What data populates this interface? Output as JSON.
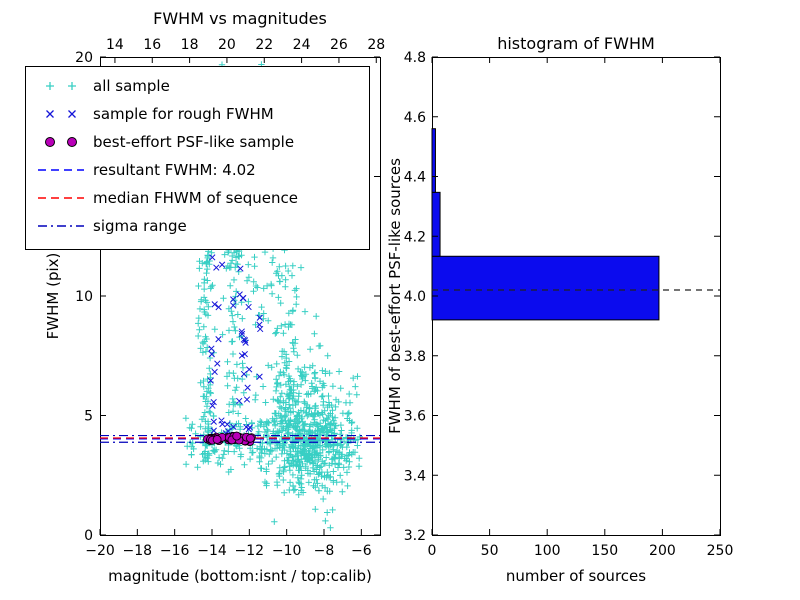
{
  "figure": {
    "background": "#ffffff"
  },
  "chart_data": [
    {
      "type": "scatter",
      "title": "FWHM vs magnitudes",
      "xlabel": "magnitude (bottom:isnt / top:calib)",
      "ylabel": "FWHM (pix)",
      "xlim": [
        -20,
        -5
      ],
      "ylim": [
        0,
        20
      ],
      "xticks": [
        -20,
        -18,
        -16,
        -14,
        -12,
        -10,
        -8,
        -6
      ],
      "yticks": [
        0,
        5,
        10,
        15,
        20
      ],
      "top_axis": {
        "lim": [
          13.2,
          28.2
        ],
        "ticks": [
          14,
          16,
          18,
          20,
          22,
          24,
          26,
          28
        ]
      },
      "grid": false,
      "series": [
        {
          "name": "all sample",
          "marker": "plus",
          "color": "#38cfc4",
          "clusters": [
            {
              "n": 230,
              "x": {
                "u": [
                  -15.4,
                  -6.1
                ]
              },
              "y": {
                "n": [
                  3.9,
                  0.55
                ]
              }
            },
            {
              "n": 120,
              "x": {
                "n": [
                  -14.3,
                  0.22
                ]
              },
              "y": {
                "u": [
                  3.0,
                  13.8
                ]
              }
            },
            {
              "n": 90,
              "x": {
                "n": [
                  -12.75,
                  0.28
                ]
              },
              "y": {
                "u": [
                  3.5,
                  13.0
                ]
              }
            },
            {
              "n": 420,
              "x": {
                "n": [
                  -9.2,
                  1.15
                ]
              },
              "y": {
                "n": [
                  4.6,
                  1.5
                ]
              }
            },
            {
              "n": 170,
              "x": {
                "n": [
                  -8.3,
                  0.95
                ]
              },
              "y": {
                "n": [
                  3.4,
                  0.8
                ]
              }
            },
            {
              "n": 90,
              "x": {
                "n": [
                  -10.1,
                  0.45
                ]
              },
              "y": {
                "u": [
                  4.5,
                  19.8
                ]
              }
            },
            {
              "n": 50,
              "x": {
                "u": [
                  -14.6,
                  -9.2
                ]
              },
              "y": {
                "u": [
                  12.5,
                  19.8
                ]
              }
            },
            {
              "n": 60,
              "x": {
                "u": [
                  -12.2,
                  -9.0
                ]
              },
              "y": {
                "u": [
                  8.0,
                  14.0
                ]
              }
            }
          ]
        },
        {
          "name": "sample for rough FWHM",
          "marker": "x",
          "color": "#1515d8",
          "clusters": [
            {
              "n": 15,
              "x": {
                "n": [
                  -13.9,
                  0.18
                ]
              },
              "y": {
                "u": [
                  4.3,
                  12.2
                ]
              }
            },
            {
              "n": 20,
              "x": {
                "n": [
                  -12.4,
                  0.22
                ]
              },
              "y": {
                "u": [
                  4.2,
                  12.8
                ]
              }
            },
            {
              "n": 9,
              "x": {
                "u": [
                  -14.3,
                  -11.9
                ]
              },
              "y": {
                "n": [
                  4.5,
                  0.25
                ]
              }
            },
            {
              "n": 4,
              "x": {
                "n": [
                  -11.3,
                  0.15
                ]
              },
              "y": {
                "u": [
                  6.2,
                  9.6
                ]
              }
            }
          ]
        },
        {
          "name": "best-effort PSF-like sample",
          "marker": "circle",
          "color": "#b800b8",
          "clusters": [
            {
              "n": 40,
              "x": {
                "u": [
                  -14.35,
                  -11.85
                ]
              },
              "y": {
                "n": [
                  4.02,
                  0.07
                ]
              }
            }
          ]
        }
      ],
      "hlines": [
        {
          "label": "resultant FWHM: 4.02",
          "y": 4.02,
          "color": "#0000ff",
          "style": "dashed"
        },
        {
          "label": "median FHWM of sequence",
          "y": 4.06,
          "color": "#ff0000",
          "style": "dashed"
        },
        {
          "label": "sigma range low",
          "y": 3.88,
          "color": "#0000bb",
          "style": "dashdot"
        },
        {
          "label": "sigma range high",
          "y": 4.16,
          "color": "#0000bb",
          "style": "dashdot"
        }
      ],
      "legend": [
        {
          "label": "all sample",
          "type": "marker",
          "marker": "plus",
          "color": "#38cfc4"
        },
        {
          "label": "sample for rough FWHM",
          "type": "marker",
          "marker": "x",
          "color": "#1515d8"
        },
        {
          "label": "best-effort PSF-like sample",
          "type": "marker",
          "marker": "circle",
          "color": "#b800b8"
        },
        {
          "label": "resultant FWHM: 4.02",
          "type": "line",
          "style": "dashed",
          "color": "#0000ff"
        },
        {
          "label": "median FHWM of sequence",
          "type": "line",
          "style": "dashed",
          "color": "#ff0000"
        },
        {
          "label": "sigma range",
          "type": "line",
          "style": "dashdot",
          "color": "#0000bb"
        }
      ]
    },
    {
      "type": "bar-horizontal",
      "title": "histogram of FWHM",
      "xlabel": "number of sources",
      "ylabel": "FWHM of best-effort PSF-like sources",
      "xlim": [
        0,
        250
      ],
      "ylim": [
        3.2,
        4.8
      ],
      "xticks": [
        0,
        50,
        100,
        150,
        200,
        250
      ],
      "yticks": [
        3.2,
        3.4,
        3.6,
        3.8,
        4.0,
        4.2,
        4.4,
        4.6,
        4.8
      ],
      "bar_color": "#0b0bee",
      "bars": [
        {
          "from": 3.92,
          "to": 4.133,
          "count": 197
        },
        {
          "from": 4.133,
          "to": 4.347,
          "count": 7
        },
        {
          "from": 4.347,
          "to": 4.56,
          "count": 3
        }
      ],
      "dash_line": {
        "y": 4.02,
        "color": "#222222",
        "style": "dashed"
      }
    }
  ]
}
